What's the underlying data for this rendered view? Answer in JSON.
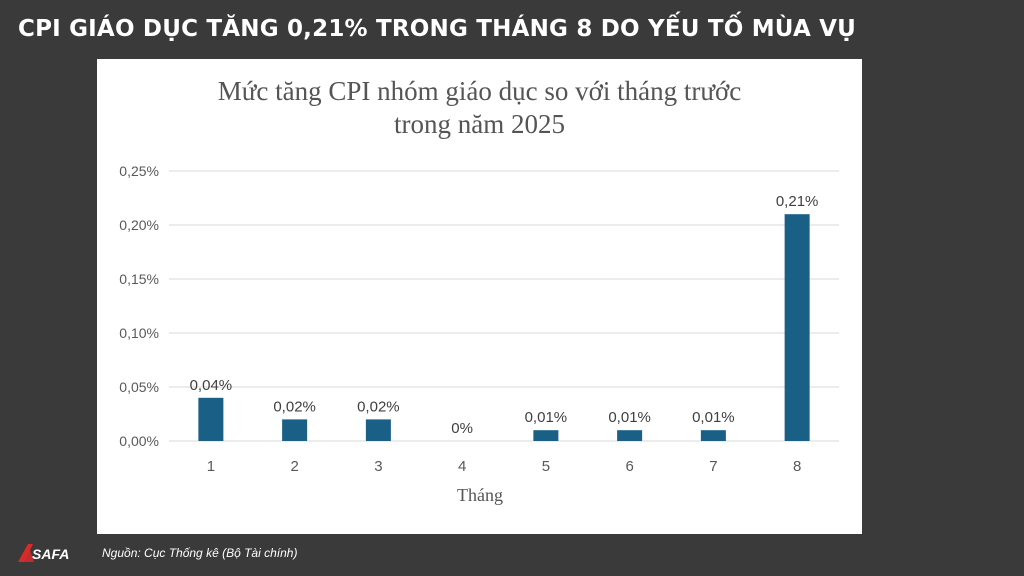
{
  "headline": "CPI GIÁO DỤC TĂNG 0,21% TRONG THÁNG 8 DO YẾU TỐ MÙA VỤ",
  "source": "Nguồn: Cục Thống kê (Bộ Tài chính)",
  "logo_text": "SAFA",
  "colors": {
    "bar": "#1a5f86",
    "background": "#3a3a3a",
    "card": "#ffffff"
  },
  "chart_data": {
    "type": "bar",
    "title": "Mức tăng CPI nhóm giáo dục so với tháng trước",
    "subtitle": "trong năm 2025",
    "xlabel": "Tháng",
    "ylabel": "",
    "categories": [
      "1",
      "2",
      "3",
      "4",
      "5",
      "6",
      "7",
      "8"
    ],
    "values": [
      0.04,
      0.02,
      0.02,
      0,
      0.01,
      0.01,
      0.01,
      0.21
    ],
    "data_labels": [
      "0,04%",
      "0,02%",
      "0,02%",
      "0%",
      "0,01%",
      "0,01%",
      "0,01%",
      "0,21%"
    ],
    "yticks": [
      0,
      0.05,
      0.1,
      0.15,
      0.2,
      0.25
    ],
    "ytick_labels": [
      "0,00%",
      "0,05%",
      "0,10%",
      "0,15%",
      "0,20%",
      "0,25%"
    ],
    "ylim": [
      0,
      0.25
    ],
    "grid": true,
    "legend": "none"
  }
}
